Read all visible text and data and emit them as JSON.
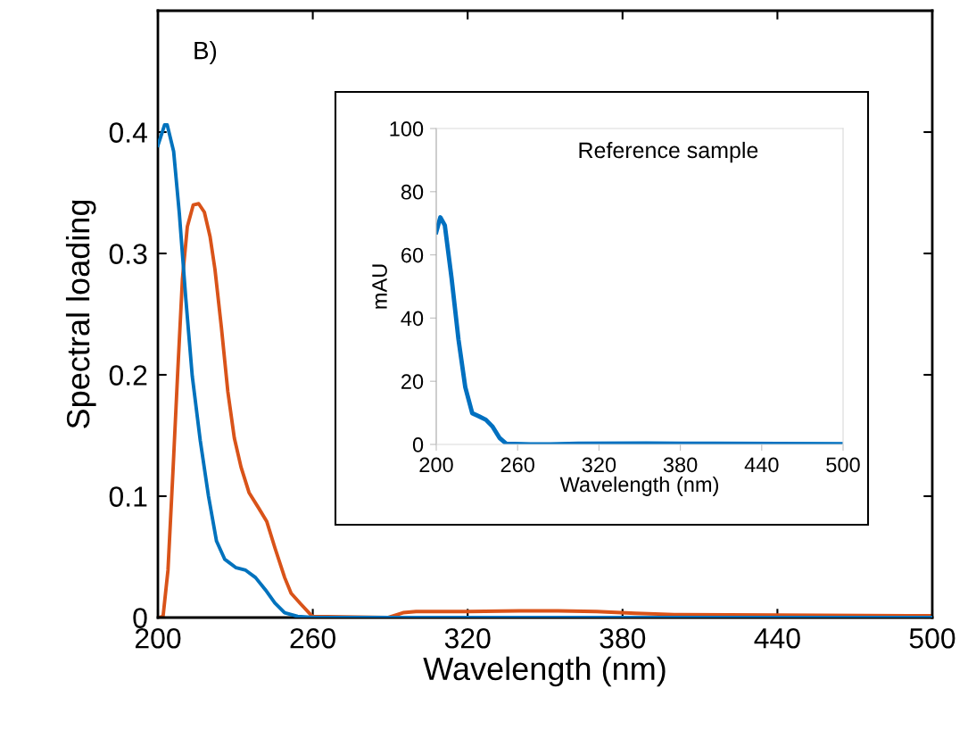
{
  "chart_data": [
    {
      "type": "line",
      "xlabel": "Wavelength (nm)",
      "ylabel": "Spectral loading",
      "annotations": [
        "B)"
      ],
      "xlim": [
        200,
        500
      ],
      "xticks": [
        200,
        260,
        320,
        380,
        440,
        500
      ],
      "ylim": [
        0,
        0.5
      ],
      "yticks": [
        0,
        0.1,
        0.2,
        0.3,
        0.4
      ],
      "grid": false,
      "legend": false,
      "marker": "none",
      "line_style": "solid",
      "series": [
        {
          "color": "#0072bd",
          "x": [
            200,
            202.6,
            203.6,
            206.1,
            208.3,
            210.8,
            213.3,
            216.4,
            219.6,
            222.7,
            225.9,
            230.3,
            234,
            237.8,
            241.6,
            245.3,
            249.1,
            254.1,
            260.4,
            300,
            400,
            500
          ],
          "values": [
            0.389,
            0.406,
            0.406,
            0.384,
            0.333,
            0.263,
            0.199,
            0.146,
            0.1,
            0.063,
            0.048,
            0.041,
            0.039,
            0.033,
            0.023,
            0.012,
            0.004,
            0.001,
            0,
            0,
            0,
            0
          ]
        },
        {
          "color": "#d95319",
          "x": [
            200.3,
            202,
            203.9,
            205.8,
            207.6,
            209.5,
            211.4,
            213.7,
            215.8,
            218,
            220.2,
            222.1,
            224.6,
            227.1,
            229.6,
            232.2,
            235.3,
            239.1,
            242.2,
            245.4,
            249.1,
            251.6,
            255.4,
            259.8,
            289,
            295,
            300,
            320,
            340,
            355,
            370,
            385,
            400,
            440,
            500
          ],
          "values": [
            0,
            0.001,
            0.039,
            0.119,
            0.199,
            0.279,
            0.322,
            0.34,
            0.341,
            0.334,
            0.314,
            0.287,
            0.239,
            0.186,
            0.148,
            0.124,
            0.103,
            0.09,
            0.079,
            0.057,
            0.033,
            0.02,
            0.011,
            0.001,
            0,
            0.004,
            0.005,
            0.005,
            0.0055,
            0.0055,
            0.005,
            0.0035,
            0.0025,
            0.002,
            0.0015
          ]
        }
      ]
    },
    {
      "type": "line",
      "xlabel": "Wavelength (nm)",
      "ylabel": "mAU",
      "annotations": [
        "Reference sample"
      ],
      "xlim": [
        200,
        500
      ],
      "xticks": [
        200,
        260,
        320,
        380,
        440,
        500
      ],
      "ylim": [
        0,
        100
      ],
      "yticks": [
        0,
        20,
        40,
        60,
        80,
        100
      ],
      "grid": false,
      "legend": false,
      "marker": "none",
      "line_style": "solid",
      "series": [
        {
          "color": "#0070c0",
          "x": [
            200,
            203,
            206.3,
            211.3,
            216.4,
            221.4,
            226.5,
            231.5,
            236.6,
            241.6,
            246.6,
            251.7,
            269.3,
            284.5,
            304.6,
            355,
            405.4,
            500
          ],
          "values": [
            67.2,
            71.9,
            69.4,
            52.6,
            33.2,
            18.1,
            9.9,
            8.9,
            7.8,
            5.6,
            2.1,
            0.2,
            0,
            0,
            0.2,
            0.3,
            0.2,
            0.1
          ]
        }
      ]
    }
  ]
}
